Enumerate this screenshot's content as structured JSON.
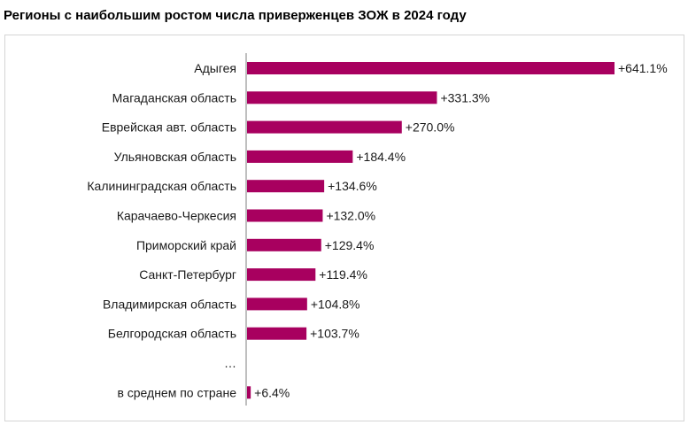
{
  "title": "Регионы с наибольшим ростом числа приверженцев ЗОЖ в 2024 году",
  "colors": {
    "bar": "#a8005f",
    "axis": "#7f7f7f",
    "frame": "#d4d4d4"
  },
  "chart_data": {
    "type": "bar",
    "orientation": "horizontal",
    "title": "Регионы с наибольшим ростом числа приверженцев ЗОЖ в 2024 году",
    "categories": [
      "Адыгея",
      "Магаданская область",
      "Еврейская авт. область",
      "Ульяновская область",
      "Калининградская область",
      "Карачаево-Черкесия",
      "Приморский край",
      "Санкт-Петербург",
      "Владимирская область",
      "Белгородская область",
      "…",
      "в среднем по стране"
    ],
    "values": [
      641.1,
      331.3,
      270.0,
      184.4,
      134.6,
      132.0,
      129.4,
      119.4,
      104.8,
      103.7,
      null,
      6.4
    ],
    "data_labels": [
      "+641.1%",
      "+331.3%",
      "+270.0%",
      "+184.4%",
      "+134.6%",
      "+132.0%",
      "+129.4%",
      "+119.4%",
      "+104.8%",
      "+103.7%",
      "",
      "+6.4%"
    ],
    "xlim": [
      0,
      641.1
    ],
    "grid": false,
    "legend": "none"
  }
}
